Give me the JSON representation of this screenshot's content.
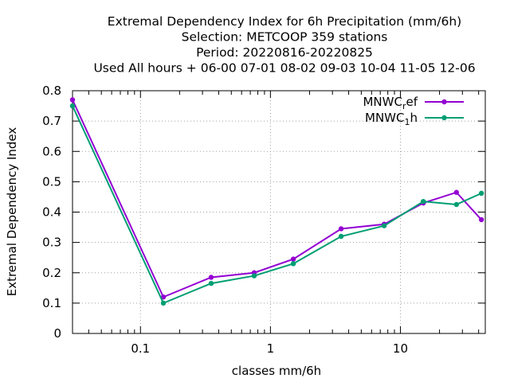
{
  "chart_data": {
    "type": "line",
    "title_lines": [
      "Extremal Dependency Index  for 6h Precipitation (mm/6h)",
      "Selection: METCOOP    359 stations",
      "Period: 20220816-20220825",
      "Used  All hours  + 06-00 07-01 08-02 09-03 10-04 11-05 12-06"
    ],
    "xlabel": "classes mm/6h",
    "ylabel": "Extremal Dependency Index",
    "x_scale": "log",
    "xlim": [
      0.03,
      45
    ],
    "ylim": [
      0,
      0.8
    ],
    "x_ticks": [
      {
        "value": 0.1,
        "label": "0.1"
      },
      {
        "value": 1,
        "label": "1"
      },
      {
        "value": 10,
        "label": "10"
      }
    ],
    "y_ticks": [
      {
        "value": 0,
        "label": "0"
      },
      {
        "value": 0.1,
        "label": "0.1"
      },
      {
        "value": 0.2,
        "label": "0.2"
      },
      {
        "value": 0.3,
        "label": "0.3"
      },
      {
        "value": 0.4,
        "label": "0.4"
      },
      {
        "value": 0.5,
        "label": "0.5"
      },
      {
        "value": 0.6,
        "label": "0.6"
      },
      {
        "value": 0.7,
        "label": "0.7"
      },
      {
        "value": 0.8,
        "label": "0.8"
      }
    ],
    "grid": true,
    "legend_position": "top-right",
    "x": [
      0.03,
      0.15,
      0.35,
      0.75,
      1.5,
      3.5,
      7.5,
      15,
      27,
      42
    ],
    "series": [
      {
        "name_base": "MNWC",
        "name_sub": "r",
        "name_rest": "ef",
        "color": "#9400d3",
        "values": [
          0.77,
          0.12,
          0.185,
          0.2,
          0.245,
          0.345,
          0.36,
          0.43,
          0.465,
          0.375
        ]
      },
      {
        "name_base": "MNWC",
        "name_sub": "1",
        "name_rest": "h",
        "color": "#009e73",
        "values": [
          0.75,
          0.1,
          0.165,
          0.19,
          0.23,
          0.32,
          0.355,
          0.435,
          0.425,
          0.462
        ]
      }
    ]
  }
}
